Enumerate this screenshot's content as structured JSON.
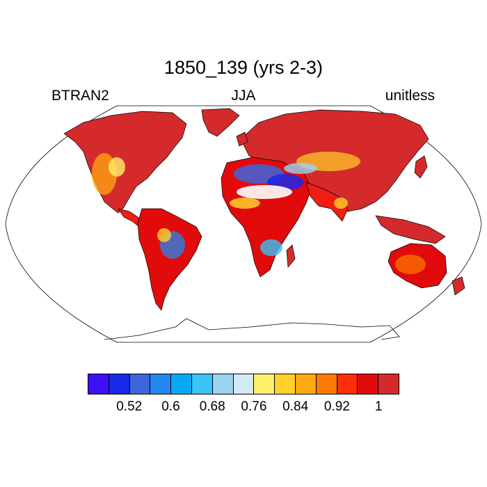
{
  "header": {
    "title": "1850_139 (yrs 2-3)",
    "left_label": "BTRAN2",
    "center_label": "JJA",
    "right_label": "unitless"
  },
  "legend": {
    "colors": [
      "#3f10f5",
      "#1a28e8",
      "#3d65dc",
      "#2387f2",
      "#08a8f5",
      "#3bc2f6",
      "#9cd3f0",
      "#d2eaf8",
      "#fff06a",
      "#ffd12a",
      "#ffaa10",
      "#ff7a00",
      "#ff2d0a",
      "#e10b0b",
      "#d42a2c"
    ],
    "tick_labels": [
      "0.52",
      "0.6",
      "0.68",
      "0.76",
      "0.84",
      "0.92",
      "1"
    ]
  },
  "palette": {
    "land_dominant": "#d42a2c",
    "land_bright": "#ef1e12"
  }
}
